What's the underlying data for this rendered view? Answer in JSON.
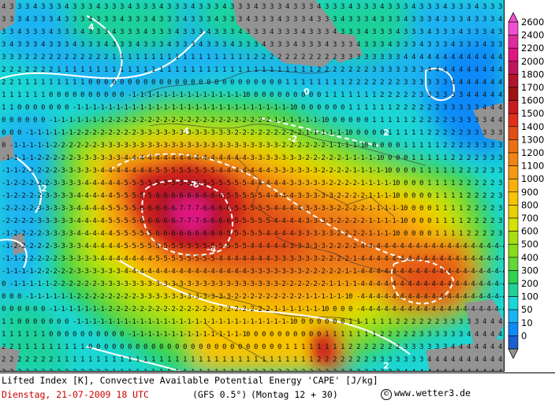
{
  "map": {
    "colors": {
      "gray": "#939393",
      "dark_blue": "#1b5ecf",
      "blue": "#0f8af7",
      "light_blue": "#1ab3f2",
      "cyan": "#1cd6d5",
      "teal": "#1fd199",
      "green": "#2fd24c",
      "yellow_green": "#88dd16",
      "yellow": "#d3e303",
      "gold": "#f8c300",
      "orange": "#f59a11",
      "dark_orange": "#eb7212",
      "red_orange": "#e04d16",
      "dark_red": "#c81c1c",
      "crimson": "#b1142b",
      "magenta": "#e0157f"
    },
    "contour_labels": [
      "-6",
      "-4",
      "-2",
      "0",
      "2",
      "4"
    ]
  },
  "legend": {
    "values": [
      "2600",
      "2400",
      "2200",
      "2000",
      "1800",
      "1700",
      "1600",
      "1500",
      "1400",
      "1300",
      "1200",
      "1100",
      "1000",
      "900",
      "800",
      "700",
      "600",
      "500",
      "400",
      "300",
      "200",
      "100",
      "50",
      "10",
      "0"
    ],
    "colors": [
      "#f050d0",
      "#e02b9f",
      "#e0157f",
      "#c0145c",
      "#b1142b",
      "#9e1212",
      "#c81c1c",
      "#e0301a",
      "#e04d16",
      "#eb7212",
      "#f08512",
      "#f59a11",
      "#f8b009",
      "#f8c300",
      "#e8d000",
      "#d3e303",
      "#a8df10",
      "#88dd16",
      "#5fd838",
      "#2fd24c",
      "#1fd199",
      "#1cd6d5",
      "#1ab3f2",
      "#0f8af7",
      "#1b5ecf"
    ]
  },
  "footer": {
    "title": "Lifted Index [K], Convective Available Potential Energy 'CAPE' [J/kg]",
    "date": "Dienstag, 21-07-2009  18 UTC",
    "model": "(GFS 0.5°)",
    "run": "(Montag 12 + 30)",
    "copyright_symbol": "©",
    "website": "www.wetter3.de"
  }
}
